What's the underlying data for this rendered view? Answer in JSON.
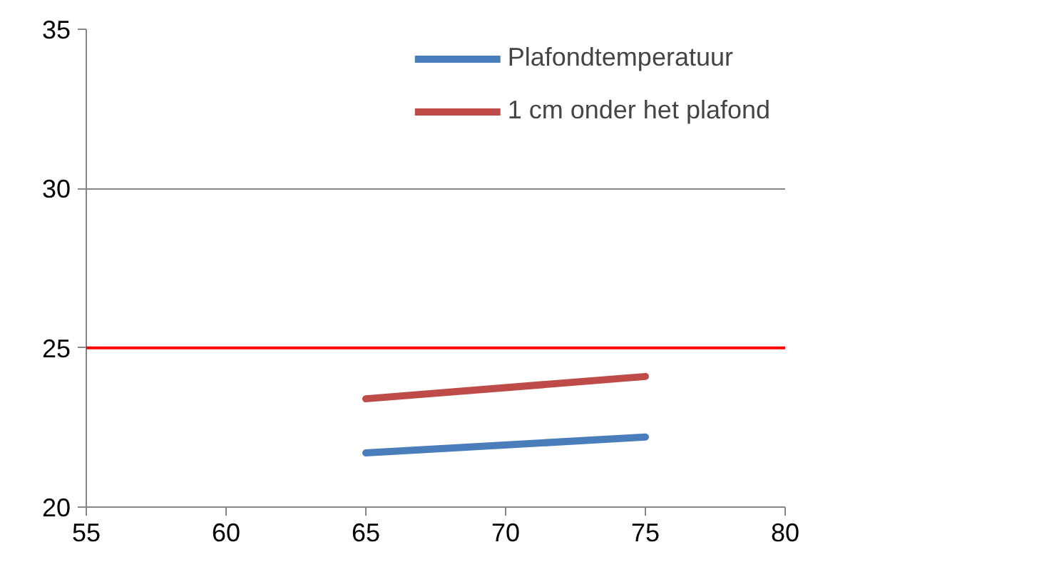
{
  "chart_data": {
    "type": "line",
    "x": [
      65,
      75
    ],
    "series": [
      {
        "name": "Plafondtemperatuur",
        "color": "#4a7ebb",
        "values": [
          21.7,
          22.2
        ]
      },
      {
        "name": "1 cm onder het plafond",
        "color": "#be4b48",
        "values": [
          23.4,
          24.1
        ]
      }
    ],
    "xlim": [
      55,
      80
    ],
    "xticks": [
      55,
      60,
      65,
      70,
      75,
      80
    ],
    "ylim": [
      20,
      35
    ],
    "yticks": [
      20,
      25,
      30,
      35
    ],
    "grid": "y",
    "legend": "top right",
    "marker": "none",
    "line_style": "solid",
    "ref_lines": [
      {
        "axis": "y",
        "value": 25,
        "color": "#ff0000"
      }
    ]
  }
}
